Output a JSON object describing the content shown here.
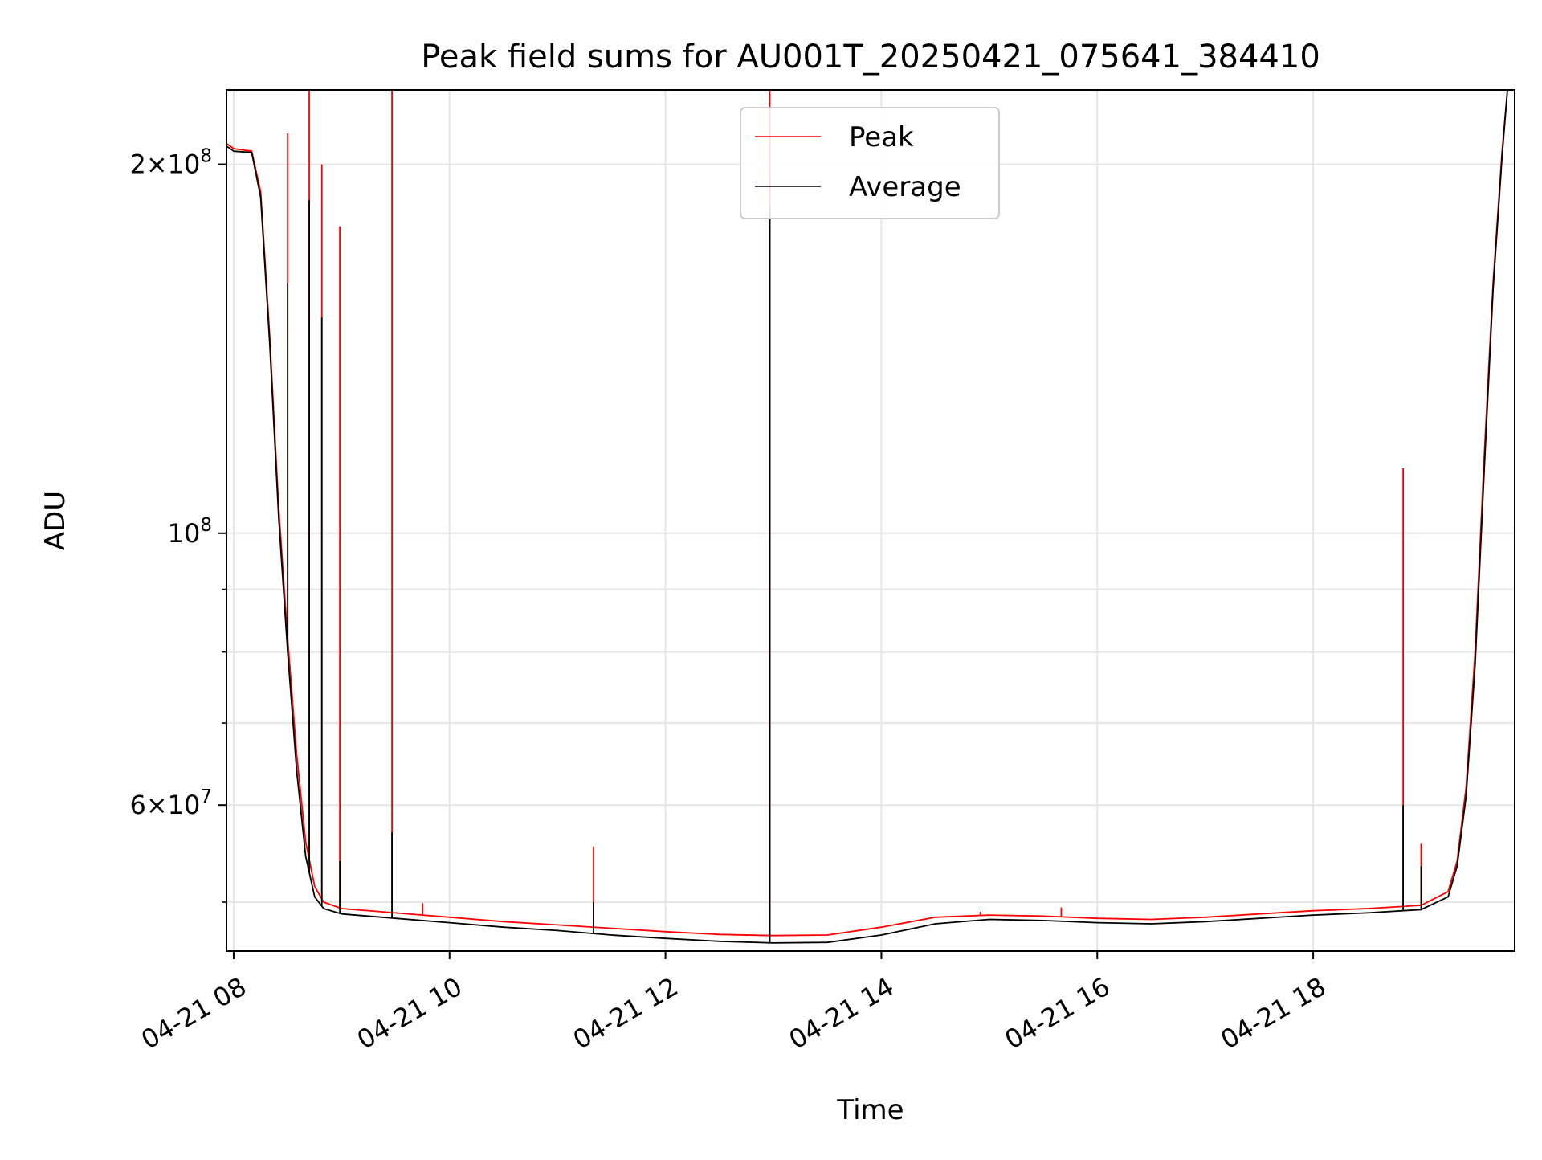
{
  "chart_data": {
    "type": "line",
    "title": "Peak field sums for AU001T_20250421_075641_384410",
    "xlabel": "Time",
    "ylabel": "ADU",
    "y_scale": "log",
    "grid": true,
    "legend_position": "top-center",
    "xlim": [
      "2025-04-21 07:56",
      "2025-04-21 19:52"
    ],
    "ylim": [
      45600000,
      230000000
    ],
    "x_ticks": [
      {
        "value": "2025-04-21 08:00",
        "label": "04-21 08"
      },
      {
        "value": "2025-04-21 10:00",
        "label": "04-21 10"
      },
      {
        "value": "2025-04-21 12:00",
        "label": "04-21 12"
      },
      {
        "value": "2025-04-21 14:00",
        "label": "04-21 14"
      },
      {
        "value": "2025-04-21 16:00",
        "label": "04-21 16"
      },
      {
        "value": "2025-04-21 18:00",
        "label": "04-21 18"
      }
    ],
    "y_ticks": [
      {
        "value": 60000000,
        "mantissa": "6",
        "exponent": "7"
      },
      {
        "value": 100000000,
        "mantissa": "",
        "exponent": "8"
      },
      {
        "value": 200000000,
        "mantissa": "2",
        "exponent": "8"
      }
    ],
    "y_minor_ticks": [
      50000000,
      70000000,
      80000000,
      90000000
    ],
    "series": [
      {
        "name": "Peak",
        "color": "#ff0000",
        "points": [
          [
            "2025-04-21 07:56",
            208000000
          ],
          [
            "2025-04-21 08:00",
            206000000
          ],
          [
            "2025-04-21 08:10",
            205000000
          ],
          [
            "2025-04-21 08:15",
            190000000
          ],
          [
            "2025-04-21 08:20",
            145000000
          ],
          [
            "2025-04-21 08:25",
            105000000
          ],
          [
            "2025-04-21 08:30",
            82000000
          ],
          [
            "2025-04-21 08:35",
            66000000
          ],
          [
            "2025-04-21 08:40",
            56000000
          ],
          [
            "2025-04-21 08:45",
            51500000
          ],
          [
            "2025-04-21 08:50",
            50000000
          ],
          [
            "2025-04-21 09:00",
            49400000
          ],
          [
            "2025-04-21 09:30",
            49000000
          ],
          [
            "2025-04-21 10:00",
            48600000
          ],
          [
            "2025-04-21 10:30",
            48200000
          ],
          [
            "2025-04-21 11:00",
            47900000
          ],
          [
            "2025-04-21 11:30",
            47600000
          ],
          [
            "2025-04-21 12:00",
            47300000
          ],
          [
            "2025-04-21 12:30",
            47050000
          ],
          [
            "2025-04-21 13:00",
            46950000
          ],
          [
            "2025-04-21 13:30",
            47000000
          ],
          [
            "2025-04-21 14:00",
            47700000
          ],
          [
            "2025-04-21 14:30",
            48600000
          ],
          [
            "2025-04-21 15:00",
            48800000
          ],
          [
            "2025-04-21 15:30",
            48700000
          ],
          [
            "2025-04-21 16:00",
            48500000
          ],
          [
            "2025-04-21 16:30",
            48400000
          ],
          [
            "2025-04-21 17:00",
            48600000
          ],
          [
            "2025-04-21 17:30",
            48900000
          ],
          [
            "2025-04-21 18:00",
            49200000
          ],
          [
            "2025-04-21 18:30",
            49400000
          ],
          [
            "2025-04-21 19:00",
            49700000
          ],
          [
            "2025-04-21 19:15",
            51000000
          ],
          [
            "2025-04-21 19:20",
            54000000
          ],
          [
            "2025-04-21 19:25",
            62000000
          ],
          [
            "2025-04-21 19:30",
            80000000
          ],
          [
            "2025-04-21 19:35",
            115000000
          ],
          [
            "2025-04-21 19:40",
            160000000
          ],
          [
            "2025-04-21 19:45",
            205000000
          ],
          [
            "2025-04-21 19:48",
            230000000
          ],
          [
            "2025-04-21 19:52",
            230000000
          ]
        ],
        "spikes": [
          [
            "2025-04-21 08:30",
            212000000
          ],
          [
            "2025-04-21 08:42",
            230000000
          ],
          [
            "2025-04-21 08:49",
            200000000
          ],
          [
            "2025-04-21 08:59",
            178000000
          ],
          [
            "2025-04-21 09:28",
            230000000
          ],
          [
            "2025-04-21 09:45",
            49900000
          ],
          [
            "2025-04-21 11:20",
            55500000
          ],
          [
            "2025-04-21 12:58",
            230000000
          ],
          [
            "2025-04-21 14:55",
            49100000
          ],
          [
            "2025-04-21 15:40",
            49500000
          ],
          [
            "2025-04-21 18:50",
            113000000
          ],
          [
            "2025-04-21 19:00",
            55800000
          ]
        ]
      },
      {
        "name": "Average",
        "color": "#000000",
        "points": [
          [
            "2025-04-21 07:56",
            207000000
          ],
          [
            "2025-04-21 08:00",
            205000000
          ],
          [
            "2025-04-21 08:10",
            204500000
          ],
          [
            "2025-04-21 08:15",
            188000000
          ],
          [
            "2025-04-21 08:20",
            143000000
          ],
          [
            "2025-04-21 08:25",
            103000000
          ],
          [
            "2025-04-21 08:30",
            80000000
          ],
          [
            "2025-04-21 08:35",
            64000000
          ],
          [
            "2025-04-21 08:40",
            54500000
          ],
          [
            "2025-04-21 08:45",
            50500000
          ],
          [
            "2025-04-21 08:50",
            49400000
          ],
          [
            "2025-04-21 09:00",
            48900000
          ],
          [
            "2025-04-21 09:30",
            48500000
          ],
          [
            "2025-04-21 10:00",
            48100000
          ],
          [
            "2025-04-21 10:30",
            47700000
          ],
          [
            "2025-04-21 11:00",
            47400000
          ],
          [
            "2025-04-21 11:30",
            47000000
          ],
          [
            "2025-04-21 12:00",
            46700000
          ],
          [
            "2025-04-21 12:30",
            46450000
          ],
          [
            "2025-04-21 13:00",
            46300000
          ],
          [
            "2025-04-21 13:30",
            46350000
          ],
          [
            "2025-04-21 14:00",
            47000000
          ],
          [
            "2025-04-21 14:30",
            48000000
          ],
          [
            "2025-04-21 15:00",
            48400000
          ],
          [
            "2025-04-21 15:30",
            48300000
          ],
          [
            "2025-04-21 16:00",
            48100000
          ],
          [
            "2025-04-21 16:30",
            48000000
          ],
          [
            "2025-04-21 17:00",
            48200000
          ],
          [
            "2025-04-21 17:30",
            48500000
          ],
          [
            "2025-04-21 18:00",
            48800000
          ],
          [
            "2025-04-21 18:30",
            49000000
          ],
          [
            "2025-04-21 19:00",
            49300000
          ],
          [
            "2025-04-21 19:15",
            50500000
          ],
          [
            "2025-04-21 19:20",
            53500000
          ],
          [
            "2025-04-21 19:25",
            61000000
          ],
          [
            "2025-04-21 19:30",
            78000000
          ],
          [
            "2025-04-21 19:35",
            112000000
          ],
          [
            "2025-04-21 19:40",
            158000000
          ],
          [
            "2025-04-21 19:45",
            203000000
          ],
          [
            "2025-04-21 19:48",
            230000000
          ],
          [
            "2025-04-21 19:52",
            230000000
          ]
        ],
        "spikes": [
          [
            "2025-04-21 08:30",
            160000000
          ],
          [
            "2025-04-21 08:42",
            187000000
          ],
          [
            "2025-04-21 08:49",
            150000000
          ],
          [
            "2025-04-21 08:59",
            54000000
          ],
          [
            "2025-04-21 09:28",
            57000000
          ],
          [
            "2025-04-21 11:20",
            50000000
          ],
          [
            "2025-04-21 12:58",
            185000000
          ],
          [
            "2025-04-21 18:50",
            60000000
          ],
          [
            "2025-04-21 19:00",
            53500000
          ]
        ]
      }
    ]
  }
}
